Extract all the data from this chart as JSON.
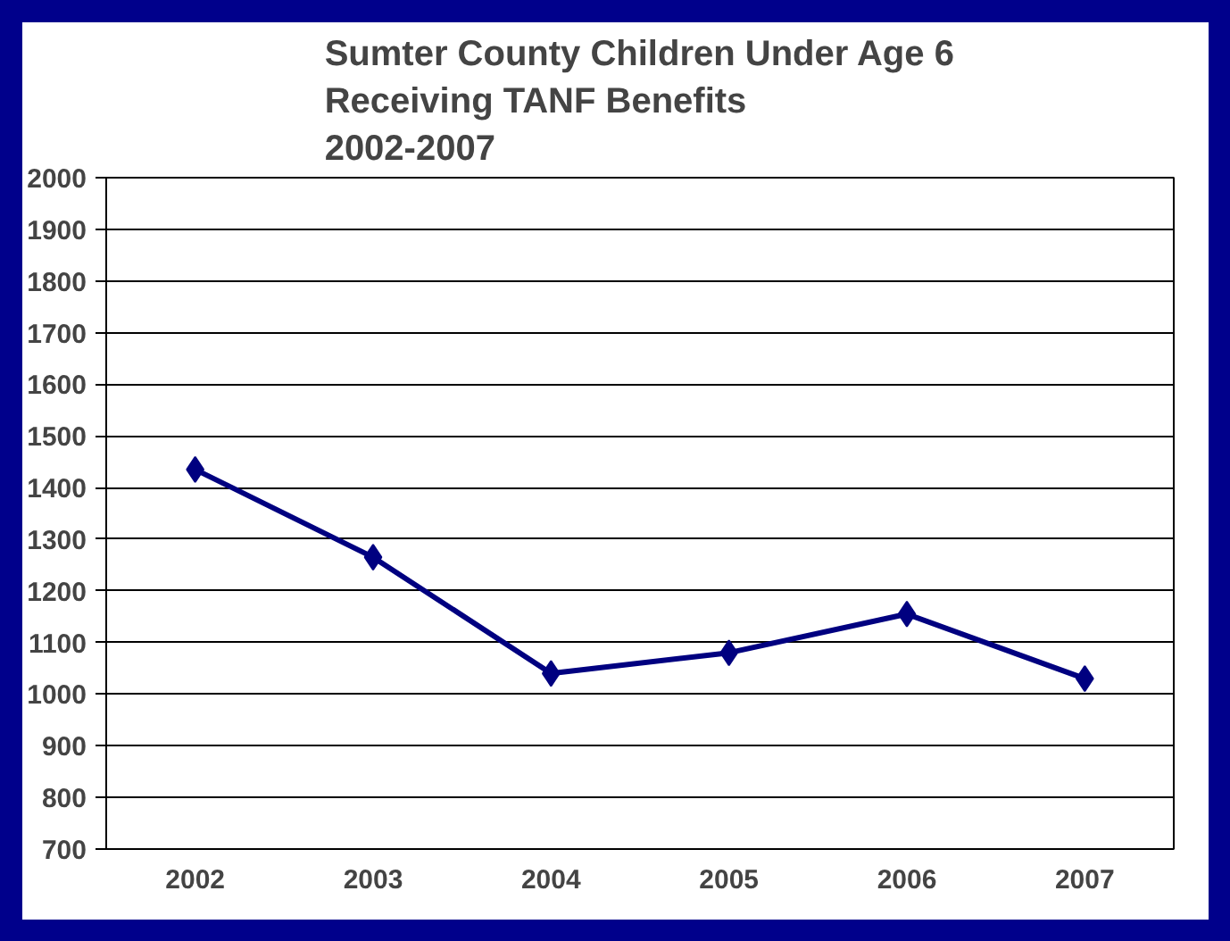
{
  "chart_data": {
    "type": "line",
    "title": "Sumter County Children Under Age 6\nReceiving TANF Benefits\n2002-2007",
    "categories": [
      "2002",
      "2003",
      "2004",
      "2005",
      "2006",
      "2007"
    ],
    "series": [
      {
        "color": "#000080",
        "values": [
          1435,
          1265,
          1040,
          1080,
          1155,
          1030
        ]
      }
    ],
    "ylim": [
      700,
      2000
    ],
    "yticks": [
      700,
      800,
      900,
      1000,
      1100,
      1200,
      1300,
      1400,
      1500,
      1600,
      1700,
      1800,
      1900,
      2000
    ],
    "grid": "y",
    "marker": "diamond",
    "line_style": "solid"
  }
}
